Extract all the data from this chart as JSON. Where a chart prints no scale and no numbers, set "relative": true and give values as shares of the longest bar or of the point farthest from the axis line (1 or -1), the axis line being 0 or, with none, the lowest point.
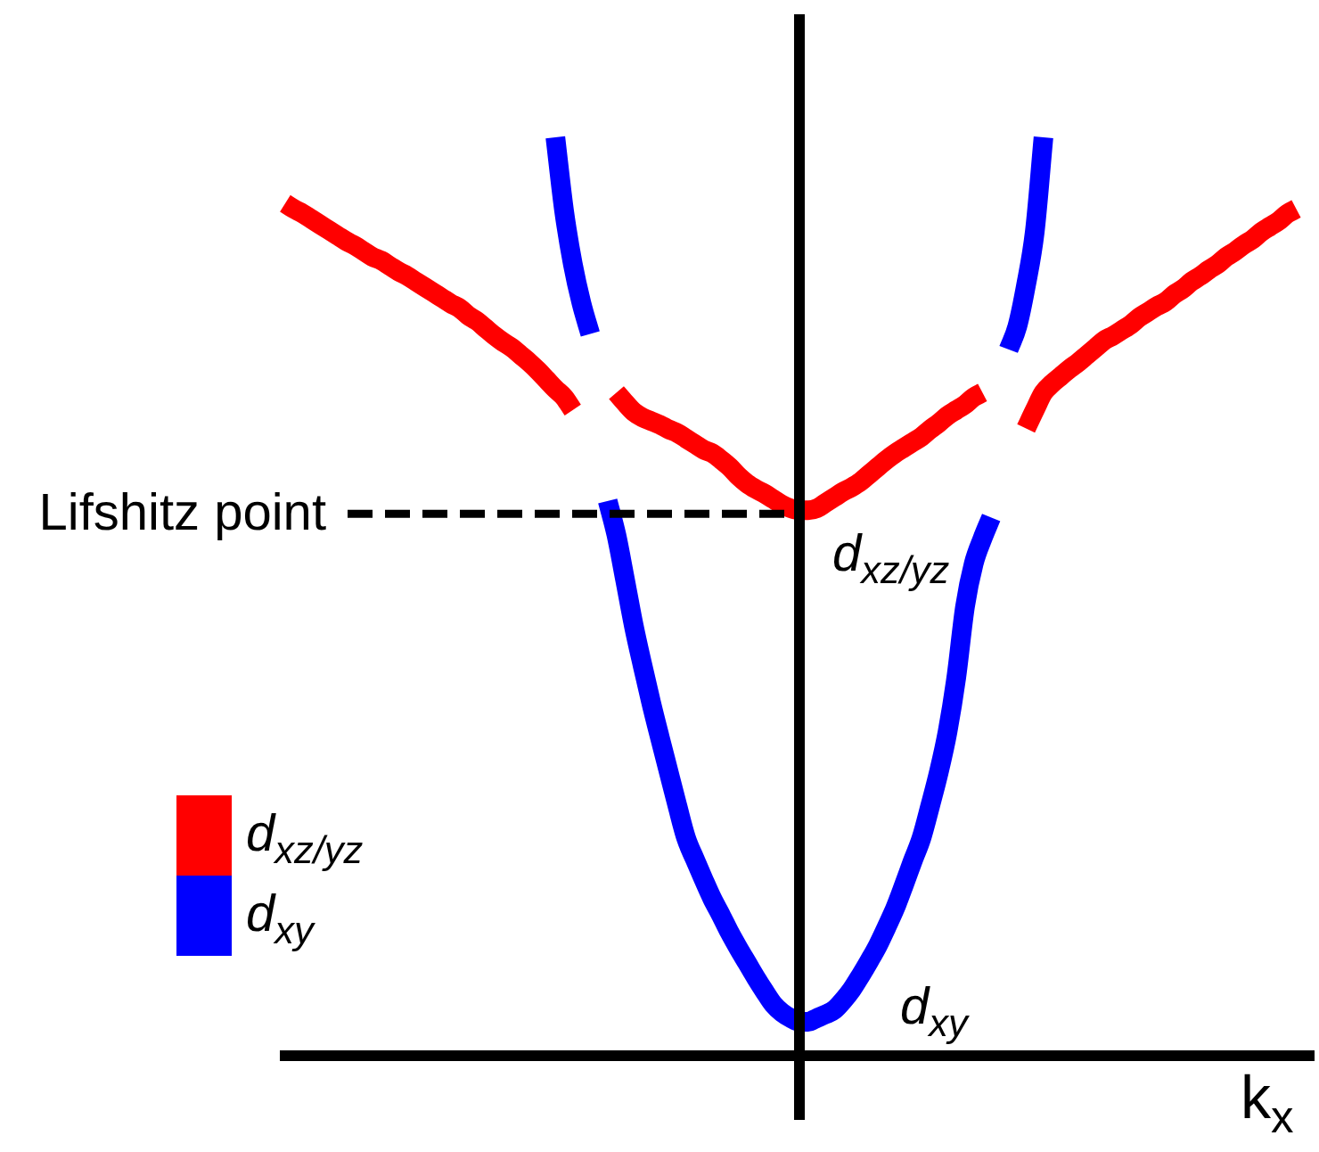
{
  "chart_data": {
    "type": "line",
    "relative": true,
    "xlabel": "k$_{x}$",
    "categories": [
      null,
      null,
      null,
      null,
      null,
      null,
      null,
      null,
      null,
      null,
      null,
      null,
      null,
      null,
      null,
      null,
      null,
      null,
      null,
      null,
      null,
      null,
      null,
      null,
      null,
      null,
      null,
      null,
      null,
      null,
      null,
      null,
      null,
      null,
      null,
      null,
      null,
      null,
      null,
      null,
      null,
      null,
      null,
      null,
      null,
      null,
      null,
      null,
      null,
      null,
      null,
      null,
      null,
      null,
      null,
      null,
      null,
      null,
      null,
      null,
      null,
      null,
      null,
      null,
      null,
      null,
      null,
      null,
      null,
      null,
      null,
      null,
      null,
      null,
      null,
      null,
      null,
      null,
      null,
      null,
      null,
      null,
      null,
      null,
      null,
      null,
      null,
      null,
      null,
      null,
      null,
      null,
      null,
      null,
      null,
      null,
      null,
      null,
      null,
      null,
      null,
      null,
      null,
      null,
      null,
      null,
      null,
      null,
      null,
      null,
      null,
      null,
      null,
      null,
      null,
      null,
      null,
      null,
      null
    ],
    "series": [
      {
        "name": "d$_{xz/yz}$",
        "color": "#ff0000",
        "values": [
          null,
          null,
          null,
          null,
          null,
          null,
          null,
          null,
          null,
          null,
          null,
          null,
          null,
          null,
          null,
          null,
          null,
          null,
          null,
          null,
          null,
          null,
          null,
          null,
          null,
          null,
          null,
          null,
          null,
          null,
          null,
          null,
          null,
          null,
          null,
          null,
          null,
          null,
          0.722,
          0.711,
          0.701,
          0.695,
          0.691,
          0.687,
          0.682,
          0.678,
          0.672,
          0.666,
          0.66,
          0.656,
          0.649,
          0.641,
          0.631,
          0.623,
          0.617,
          0.612,
          0.606,
          0.6,
          0.596,
          0.594,
          0.594,
          0.596,
          0.602,
          0.608,
          0.614,
          0.619,
          0.625,
          0.633,
          0.641,
          0.649,
          0.656,
          0.662,
          0.668,
          0.674,
          0.682,
          0.689,
          0.697,
          0.703,
          0.709,
          0.717,
          0.722,
          null,
          null,
          null,
          null,
          null,
          null,
          null,
          null,
          null,
          null,
          null,
          null,
          null,
          null,
          null,
          null,
          null,
          null,
          null,
          null,
          null,
          null,
          null,
          null,
          null,
          null,
          null,
          null,
          null,
          null,
          null,
          null,
          null,
          null,
          null,
          null,
          null,
          null
        ]
      },
      {
        "name": "d$_{xy}$",
        "color": "#0000ff",
        "values": [
          null,
          null,
          null,
          null,
          null,
          null,
          null,
          null,
          null,
          null,
          null,
          null,
          null,
          null,
          null,
          null,
          null,
          null,
          null,
          null,
          null,
          null,
          null,
          null,
          null,
          null,
          null,
          null,
          null,
          null,
          null,
          null,
          null,
          null,
          null,
          null,
          null,
          0.604,
          0.567,
          0.518,
          0.468,
          0.425,
          0.384,
          0.346,
          0.309,
          0.272,
          0.237,
          0.214,
          0.192,
          0.171,
          0.153,
          0.134,
          0.117,
          0.101,
          0.085,
          0.07,
          0.056,
          0.047,
          0.041,
          0.037,
          0.037,
          0.041,
          0.045,
          0.05,
          0.06,
          0.072,
          0.087,
          0.103,
          0.12,
          0.14,
          0.161,
          0.186,
          0.212,
          0.237,
          0.272,
          0.309,
          0.353,
          0.412,
          0.489,
          0.536,
          0.563,
          0.586,
          null,
          null,
          null,
          null,
          null,
          null,
          null,
          null,
          null,
          null,
          null,
          null,
          null,
          null,
          null,
          null,
          null,
          null,
          null,
          null,
          null,
          null,
          null,
          null,
          null,
          null,
          null,
          null,
          null,
          null,
          null,
          null,
          null,
          null,
          null,
          null,
          null
        ]
      },
      {
        "color": "#ff0000",
        "values": [
          0.928,
          0.922,
          0.917,
          0.911,
          0.905,
          0.899,
          0.893,
          0.887,
          0.882,
          0.876,
          0.87,
          0.866,
          0.86,
          0.854,
          0.849,
          0.843,
          0.837,
          0.831,
          0.825,
          0.819,
          0.814,
          0.806,
          0.8,
          0.792,
          0.784,
          0.777,
          0.771,
          0.763,
          0.755,
          0.746,
          0.736,
          0.726,
          0.717,
          0.703,
          null,
          null,
          null,
          null,
          null,
          null,
          null,
          null,
          null,
          null,
          null,
          null,
          null,
          null,
          null,
          null,
          null,
          null,
          null,
          null,
          null,
          null,
          null,
          null,
          null,
          null,
          null,
          null,
          null,
          null,
          null,
          null,
          null,
          null,
          null,
          null,
          null,
          null,
          null,
          null,
          null,
          null,
          null,
          null,
          null,
          null,
          null,
          null,
          null,
          null,
          null,
          null,
          null,
          null,
          null,
          null,
          null,
          null,
          null,
          null,
          null,
          null,
          null,
          null,
          null,
          null,
          null,
          null,
          null,
          null,
          null,
          null,
          null,
          null,
          null,
          null,
          null,
          null,
          null,
          null,
          null,
          null,
          null,
          null,
          null
        ]
      },
      {
        "color": "#ff0000",
        "values": [
          null,
          null,
          null,
          null,
          null,
          null,
          null,
          null,
          null,
          null,
          null,
          null,
          null,
          null,
          null,
          null,
          null,
          null,
          null,
          null,
          null,
          null,
          null,
          null,
          null,
          null,
          null,
          null,
          null,
          null,
          null,
          null,
          null,
          null,
          null,
          null,
          null,
          null,
          null,
          null,
          null,
          null,
          null,
          null,
          null,
          null,
          null,
          null,
          null,
          null,
          null,
          null,
          null,
          null,
          null,
          null,
          null,
          null,
          null,
          null,
          null,
          null,
          null,
          null,
          null,
          null,
          null,
          null,
          null,
          null,
          null,
          null,
          null,
          null,
          null,
          null,
          null,
          null,
          null,
          null,
          null,
          null,
          null,
          null,
          null,
          0.683,
          0.703,
          0.722,
          0.732,
          0.74,
          0.748,
          0.755,
          0.763,
          0.771,
          0.779,
          0.784,
          0.79,
          0.796,
          0.804,
          0.81,
          0.816,
          0.821,
          0.829,
          0.835,
          0.843,
          0.849,
          0.856,
          0.862,
          0.87,
          0.876,
          0.883,
          0.889,
          0.897,
          0.903,
          0.909,
          0.917,
          0.922,
          null,
          null
        ]
      },
      {
        "color": "#0000ff",
        "values": [
          null,
          null,
          null,
          null,
          null,
          null,
          null,
          null,
          null,
          null,
          null,
          null,
          null,
          null,
          null,
          null,
          null,
          null,
          null,
          null,
          null,
          null,
          null,
          null,
          null,
          null,
          null,
          null,
          null,
          null,
          null,
          1,
          0.92,
          0.862,
          0.819,
          0.786,
          null,
          null,
          null,
          null,
          null,
          null,
          null,
          null,
          null,
          null,
          null,
          null,
          null,
          null,
          null,
          null,
          null,
          null,
          null,
          null,
          null,
          null,
          null,
          null,
          null,
          null,
          null,
          null,
          null,
          null,
          null,
          null,
          null,
          null,
          null,
          null,
          null,
          null,
          null,
          null,
          null,
          null,
          null,
          null,
          null,
          null,
          null,
          null,
          null,
          null,
          null,
          null,
          null,
          null,
          null,
          null,
          null,
          null,
          null,
          null,
          null,
          null,
          null,
          null,
          null,
          null,
          null,
          null,
          null,
          null,
          null,
          null,
          null,
          null,
          null,
          null,
          null,
          null,
          null,
          null,
          null,
          null,
          null
        ]
      },
      {
        "color": "#0000ff",
        "values": [
          null,
          null,
          null,
          null,
          null,
          null,
          null,
          null,
          null,
          null,
          null,
          null,
          null,
          null,
          null,
          null,
          null,
          null,
          null,
          null,
          null,
          null,
          null,
          null,
          null,
          null,
          null,
          null,
          null,
          null,
          null,
          null,
          null,
          null,
          null,
          null,
          null,
          null,
          null,
          null,
          null,
          null,
          null,
          null,
          null,
          null,
          null,
          null,
          null,
          null,
          null,
          null,
          null,
          null,
          null,
          null,
          null,
          null,
          null,
          null,
          null,
          null,
          null,
          null,
          null,
          null,
          null,
          null,
          null,
          null,
          null,
          null,
          null,
          null,
          null,
          null,
          null,
          null,
          null,
          null,
          null,
          null,
          null,
          0.769,
          0.794,
          0.839,
          0.897,
          1,
          null,
          null,
          null,
          null,
          null,
          null,
          null,
          null,
          null,
          null,
          null,
          null,
          null,
          null,
          null,
          null,
          null,
          null,
          null,
          null,
          null,
          null,
          null,
          null,
          null,
          null,
          null,
          null,
          null,
          null,
          null
        ]
      }
    ],
    "legend": "bottom left",
    "marker": "none",
    "line_style": "solid",
    "ref_lines": [
      {
        "axis": "y",
        "value": 0.59,
        "label": "Lifshitz point",
        "color": "#000000",
        "line_style": "dashed"
      }
    ],
    "annotations": [
      "d$_{xz/yz}$",
      "d$_{xy}$"
    ]
  }
}
